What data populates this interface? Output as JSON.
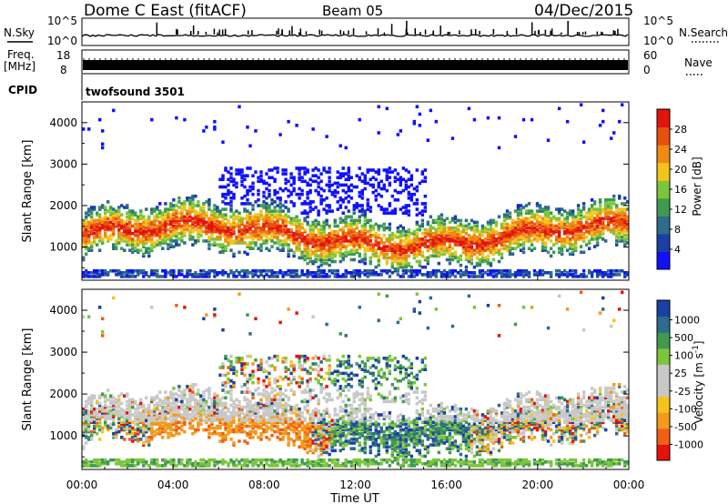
{
  "header": {
    "station": "Dome C East (fitACF)",
    "beam": "Beam 05",
    "date": "04/Dec/2015"
  },
  "noise_panel": {
    "left_label": "N.Sky",
    "right_label": "N.Search",
    "ticks_top": "10^5",
    "ticks_bottom": "10^0"
  },
  "freq_panel": {
    "left_label_1": "Freq.",
    "left_label_2": "[MHz]",
    "left_top": "18",
    "left_bottom": "8",
    "right_label": "Nave",
    "right_top": "60",
    "right_bottom": "0"
  },
  "cpid": {
    "label": "CPID",
    "value": "twofsound 3501"
  },
  "colors": {
    "power_scale": [
      "#1010ff",
      "#1a3fa6",
      "#2e6b8c",
      "#3f9a50",
      "#7cc63a",
      "#f5c418",
      "#f08a12",
      "#e8500d",
      "#e4130c"
    ],
    "velocity_scale": [
      "#e4130c",
      "#f06014",
      "#f39a1c",
      "#f5c418",
      "#c8c8c8",
      "#c8c8c8",
      "#7cc63a",
      "#3f9a50",
      "#2e6b8c",
      "#1a3fa6"
    ],
    "ground_scatter": "#c8c8c8"
  },
  "chart_data": [
    {
      "type": "heatmap",
      "panel": "power",
      "ylabel": "Slant Range [km]",
      "y_ticks": [
        "1000",
        "2000",
        "3000",
        "4000"
      ],
      "ylim": [
        200,
        4500
      ],
      "colorbar_label": "Power [dB]",
      "colorbar_ticks": [
        "4",
        "8",
        "12",
        "16",
        "20",
        "24",
        "28"
      ],
      "colorbar_range": [
        0,
        32
      ]
    },
    {
      "type": "heatmap",
      "panel": "velocity",
      "ylabel": "Slant Range [km]",
      "y_ticks": [
        "1000",
        "2000",
        "3000",
        "4000"
      ],
      "ylim": [
        200,
        4500
      ],
      "xlabel": "Time UT",
      "x_ticks": [
        "00:00",
        "04:00",
        "08:00",
        "12:00",
        "16:00",
        "20:00",
        "00:00"
      ],
      "colorbar_label": "Velocity [m s^-1]",
      "colorbar_ticks": [
        "1000",
        "500",
        "100",
        "25",
        "-25",
        "-100",
        "-500",
        "-1000"
      ]
    }
  ]
}
